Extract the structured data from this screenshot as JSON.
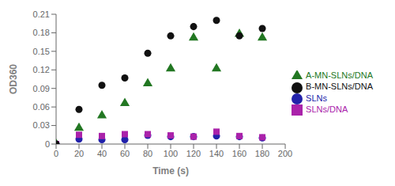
{
  "chart_data": {
    "type": "scatter",
    "xlabel": "Time (s)",
    "ylabel": "OD360",
    "x": [
      0,
      20,
      40,
      60,
      80,
      100,
      120,
      140,
      160,
      180
    ],
    "xlim": [
      0,
      200
    ],
    "ylim": [
      0,
      0.21
    ],
    "xticks": [
      0,
      20,
      40,
      60,
      80,
      100,
      120,
      140,
      160,
      180,
      200
    ],
    "yticks": [
      0,
      0.03,
      0.06,
      0.09,
      0.12,
      0.15,
      0.18,
      0.21
    ],
    "grid": false,
    "legend": "right",
    "series": [
      {
        "name": "SLNs",
        "color": "#2222aa",
        "marker": "circle",
        "values": [
          0.0,
          0.008,
          0.007,
          0.007,
          0.014,
          0.012,
          0.012,
          0.013,
          0.012,
          0.01
        ]
      },
      {
        "name": "SLNs/DNA",
        "color": "#aa22aa",
        "marker": "square",
        "values": [
          0.0,
          0.015,
          0.013,
          0.016,
          0.016,
          0.014,
          0.012,
          0.02,
          0.013,
          0.011
        ]
      },
      {
        "name": "A-MN-SLNs/DNA",
        "color": "#227722",
        "marker": "triangle",
        "values": [
          0.0,
          0.026,
          0.046,
          0.066,
          0.098,
          0.122,
          0.172,
          0.122,
          0.178,
          0.172
        ]
      },
      {
        "name": "B-MN-SLNs/DNA",
        "color": "#111111",
        "marker": "circle",
        "values": [
          0.0,
          0.056,
          0.095,
          0.107,
          0.147,
          0.175,
          0.19,
          0.2,
          0.175,
          0.187
        ]
      }
    ]
  }
}
